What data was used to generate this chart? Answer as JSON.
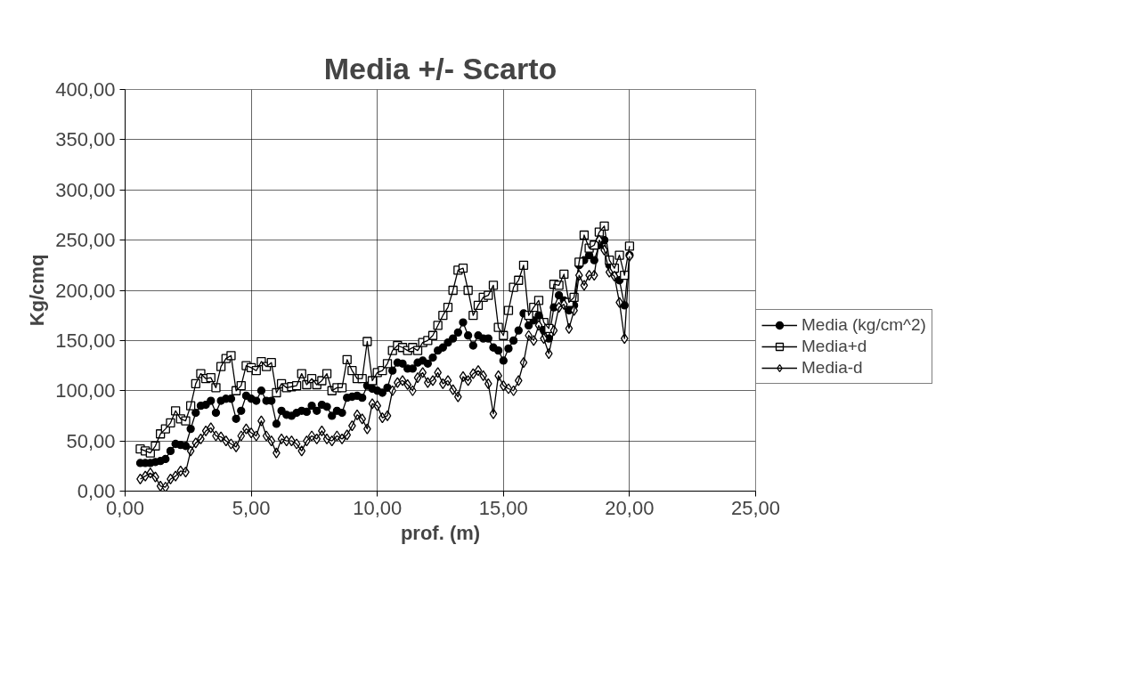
{
  "chart_data": {
    "type": "line",
    "title": "Media +/- Scarto",
    "xlabel": "prof. (m)",
    "ylabel": "Kg/cmq",
    "x": [
      0.6,
      0.8,
      1.0,
      1.2,
      1.4,
      1.6,
      1.8,
      2.0,
      2.2,
      2.4,
      2.6,
      2.8,
      3.0,
      3.2,
      3.4,
      3.6,
      3.8,
      4.0,
      4.2,
      4.4,
      4.6,
      4.8,
      5.0,
      5.2,
      5.4,
      5.6,
      5.8,
      6.0,
      6.2,
      6.4,
      6.6,
      6.8,
      7.0,
      7.2,
      7.4,
      7.6,
      7.8,
      8.0,
      8.2,
      8.4,
      8.6,
      8.8,
      9.0,
      9.2,
      9.4,
      9.6,
      9.8,
      10.0,
      10.2,
      10.4,
      10.6,
      10.8,
      11.0,
      11.2,
      11.4,
      11.6,
      11.8,
      12.0,
      12.2,
      12.4,
      12.6,
      12.8,
      13.0,
      13.2,
      13.4,
      13.6,
      13.8,
      14.0,
      14.2,
      14.4,
      14.6,
      14.8,
      15.0,
      15.2,
      15.4,
      15.6,
      15.8,
      16.0,
      16.2,
      16.4,
      16.6,
      16.8,
      17.0,
      17.2,
      17.4,
      17.6,
      17.8,
      18.0,
      18.2,
      18.4,
      18.6,
      18.8,
      19.0,
      19.2,
      19.4,
      19.6,
      19.8,
      20.0
    ],
    "series": [
      {
        "name": "Media (kg/cm^2)",
        "color": "#000000",
        "marker": "circle",
        "values": [
          28,
          28,
          28,
          29,
          30,
          32,
          40,
          47,
          46,
          45,
          62,
          78,
          85,
          86,
          90,
          78,
          90,
          92,
          92,
          72,
          80,
          95,
          92,
          90,
          100,
          90,
          90,
          67,
          80,
          76,
          75,
          78,
          80,
          79,
          85,
          80,
          86,
          84,
          75,
          80,
          78,
          93,
          94,
          95,
          93,
          105,
          102,
          100,
          98,
          103,
          120,
          128,
          127,
          122,
          122,
          128,
          130,
          127,
          133,
          140,
          143,
          148,
          152,
          158,
          168,
          155,
          145,
          155,
          152,
          152,
          143,
          140,
          130,
          142,
          150,
          160,
          177,
          165,
          170,
          175,
          160,
          152,
          183,
          195,
          190,
          180,
          185,
          225,
          230,
          235,
          230,
          245,
          250,
          225,
          220,
          210,
          185,
          235
        ]
      },
      {
        "name": "Media+d",
        "color": "#000000",
        "marker": "square",
        "values": [
          42,
          40,
          38,
          45,
          57,
          62,
          68,
          80,
          72,
          70,
          85,
          107,
          117,
          112,
          113,
          103,
          124,
          132,
          135,
          100,
          105,
          125,
          123,
          120,
          129,
          124,
          128,
          98,
          107,
          103,
          104,
          105,
          117,
          106,
          112,
          106,
          110,
          117,
          100,
          103,
          103,
          131,
          120,
          112,
          112,
          149,
          110,
          118,
          120,
          127,
          140,
          145,
          143,
          140,
          143,
          140,
          148,
          150,
          155,
          165,
          175,
          183,
          200,
          220,
          222,
          200,
          175,
          185,
          193,
          195,
          205,
          163,
          155,
          180,
          203,
          210,
          225,
          175,
          183,
          190,
          168,
          162,
          206,
          205,
          216,
          188,
          193,
          228,
          255,
          242,
          245,
          258,
          264,
          230,
          222,
          235,
          215,
          244
        ]
      },
      {
        "name": "Media-d",
        "color": "#000000",
        "marker": "diamond",
        "values": [
          12,
          15,
          18,
          14,
          5,
          4,
          12,
          15,
          20,
          19,
          40,
          48,
          52,
          60,
          63,
          55,
          54,
          50,
          47,
          44,
          55,
          62,
          58,
          55,
          70,
          55,
          50,
          38,
          52,
          50,
          50,
          47,
          40,
          50,
          55,
          52,
          60,
          52,
          50,
          55,
          52,
          56,
          65,
          76,
          72,
          62,
          87,
          85,
          73,
          75,
          100,
          108,
          110,
          106,
          100,
          113,
          118,
          108,
          110,
          118,
          107,
          110,
          101,
          94,
          114,
          110,
          117,
          120,
          115,
          107,
          77,
          115,
          105,
          102,
          100,
          110,
          128,
          155,
          150,
          165,
          152,
          137,
          160,
          183,
          186,
          162,
          180,
          215,
          205,
          215,
          215,
          250,
          240,
          218,
          214,
          188,
          152,
          234
        ]
      }
    ],
    "xlim": [
      0,
      25
    ],
    "ylim": [
      0,
      400
    ],
    "xticks": [
      {
        "value": 0,
        "label": "0,00"
      },
      {
        "value": 5,
        "label": "5,00"
      },
      {
        "value": 10,
        "label": "10,00"
      },
      {
        "value": 15,
        "label": "15,00"
      },
      {
        "value": 20,
        "label": "20,00"
      },
      {
        "value": 25,
        "label": "25,00"
      }
    ],
    "yticks": [
      {
        "value": 0,
        "label": "0,00"
      },
      {
        "value": 50,
        "label": "50,00"
      },
      {
        "value": 100,
        "label": "100,00"
      },
      {
        "value": 150,
        "label": "150,00"
      },
      {
        "value": 200,
        "label": "200,00"
      },
      {
        "value": 250,
        "label": "250,00"
      },
      {
        "value": 300,
        "label": "300,00"
      },
      {
        "value": 350,
        "label": "350,00"
      },
      {
        "value": 400,
        "label": "400,00"
      }
    ],
    "grid": true,
    "legend": "right",
    "line_style": "solid"
  }
}
